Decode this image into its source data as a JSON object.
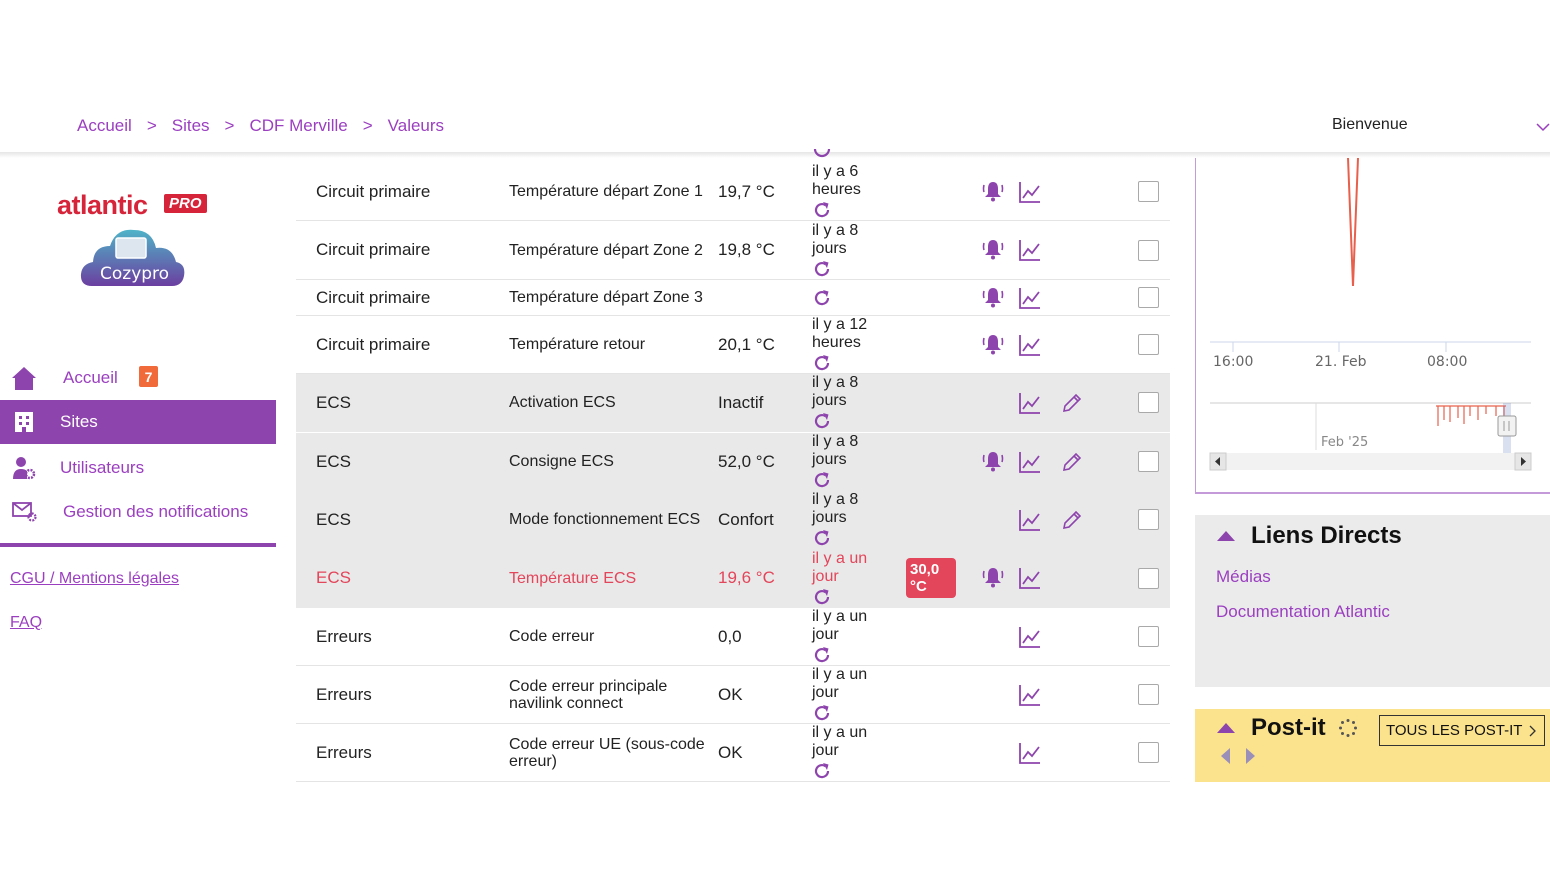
{
  "header": {
    "breadcrumb": [
      "Accueil",
      "Sites",
      "CDF Merville",
      "Valeurs"
    ],
    "separator": ">",
    "welcome": "Bienvenue"
  },
  "sidebar": {
    "logo_brand": "atlantic",
    "logo_pro": "PRO",
    "logo_app": "Cozypro",
    "nav": [
      {
        "label": "Accueil",
        "icon": "home-icon",
        "badge": "7"
      },
      {
        "label": "Sites",
        "icon": "building-icon",
        "active": true
      },
      {
        "label": "Utilisateurs",
        "icon": "user-gear-icon"
      },
      {
        "label": "Gestion des notifications",
        "icon": "mail-gear-icon"
      }
    ],
    "legal": "CGU / Mentions légales",
    "faq": "FAQ"
  },
  "table": {
    "rows": [
      {
        "category": "Circuit primaire",
        "name": "Température départ Zone 1",
        "value": "19,7 °C",
        "time": "il y a 6 heures",
        "bell": true,
        "edit": false,
        "grey": false,
        "alert": false
      },
      {
        "category": "Circuit primaire",
        "name": "Température départ Zone 2",
        "value": "19,8 °C",
        "time": "il y a 8 jours",
        "bell": true,
        "edit": false,
        "grey": false,
        "alert": false
      },
      {
        "category": "Circuit primaire",
        "name": "Température départ Zone 3",
        "value": "",
        "time": "",
        "bell": true,
        "edit": false,
        "grey": false,
        "alert": false
      },
      {
        "category": "Circuit primaire",
        "name": "Température retour",
        "value": "20,1 °C",
        "time": "il y a 12 heures",
        "bell": true,
        "edit": false,
        "grey": false,
        "alert": false
      },
      {
        "category": "ECS",
        "name": "Activation ECS",
        "value": "Inactif",
        "time": "il y a 8 jours",
        "bell": false,
        "edit": true,
        "grey": true,
        "alert": false
      },
      {
        "category": "ECS",
        "name": "Consigne ECS",
        "value": "52,0 °C",
        "time": "il y a 8 jours",
        "bell": true,
        "edit": true,
        "grey": true,
        "alert": false
      },
      {
        "category": "ECS",
        "name": "Mode fonctionnement ECS",
        "value": "Confort",
        "time": "il y a 8 jours",
        "bell": false,
        "edit": true,
        "grey": true,
        "alert": false
      },
      {
        "category": "ECS",
        "name": "Température ECS",
        "value": "19,6 °C",
        "time": "il y a un jour",
        "threshold": "30,0 °C",
        "bell": true,
        "edit": false,
        "grey": true,
        "alert": true
      },
      {
        "category": "Erreurs",
        "name": "Code erreur",
        "value": "0,0",
        "time": "il y a un jour",
        "bell": false,
        "edit": false,
        "grey": false,
        "alert": false
      },
      {
        "category": "Erreurs",
        "name": "Code erreur principale navilink connect",
        "value": "OK",
        "time": "il y a un jour",
        "bell": false,
        "edit": false,
        "grey": false,
        "alert": false
      },
      {
        "category": "Erreurs",
        "name": "Code erreur UE (sous-code erreur)",
        "value": "OK",
        "time": "il y a un jour",
        "bell": false,
        "edit": false,
        "grey": false,
        "alert": false
      }
    ]
  },
  "chart": {
    "x_ticks": [
      "16:00",
      "21. Feb",
      "08:00"
    ],
    "navigator_label": "Feb '25",
    "series_color": "#e8604c"
  },
  "links": {
    "title": "Liens Directs",
    "items": [
      "Médias",
      "Documentation Atlantic"
    ]
  },
  "postit": {
    "title": "Post-it",
    "all_button": "TOUS LES POST-IT"
  },
  "colors": {
    "accent": "#8e44ad",
    "link": "#9b3fc0",
    "alert": "#e3455a",
    "brand": "#d6253a",
    "postit": "#fbe38e"
  }
}
